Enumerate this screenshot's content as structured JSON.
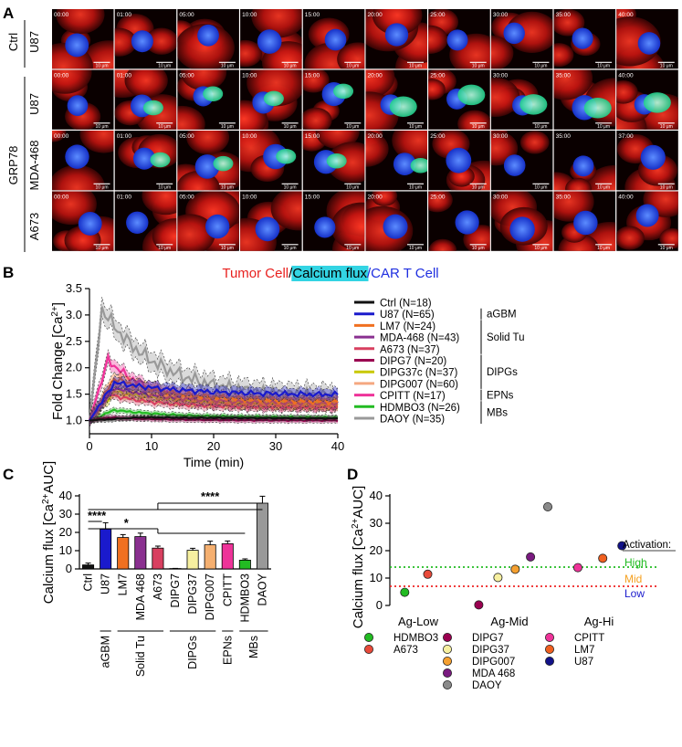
{
  "panel_letters": {
    "a": "A",
    "b": "B",
    "c": "C",
    "d": "D"
  },
  "panel_a": {
    "row_labels": [
      "U87",
      "U87",
      "MDA-468",
      "A673"
    ],
    "group_labels": {
      "ctrl": "Ctrl",
      "grp78": "GRP78"
    },
    "timestamps": [
      [
        "00:00",
        "01:00",
        "05:00",
        "10:00",
        "15:00",
        "20:00",
        "25:00",
        "30:00",
        "35:00",
        "40:00"
      ],
      [
        "00:00",
        "01:00",
        "05:00",
        "10:00",
        "15:00",
        "20:00",
        "25:00",
        "30:00",
        "35:00",
        "40:00"
      ],
      [
        "00:00",
        "01:00",
        "05:00",
        "10:00",
        "15:00",
        "20:00",
        "25:00",
        "30:00",
        "35:00",
        "37:00"
      ],
      [
        "00:00",
        "01:00",
        "05:00",
        "10:00",
        "15:00",
        "20:00",
        "25:00",
        "30:00",
        "35:00",
        "40:00"
      ]
    ],
    "scale_bar": "10 μm",
    "caption": {
      "tumor": "Tumor Cell",
      "slash1": "/",
      "calcium": "Calcium flux",
      "slash2": "/",
      "car": "CAR T Cell"
    },
    "colors": {
      "tumor": "#e8201e",
      "calcium": "#33d4e3",
      "car": "#1f2fe0",
      "nucleus": "#3b6bff",
      "flux": "#33e9a0"
    }
  },
  "chart_data": [
    {
      "panel": "B",
      "type": "line",
      "xlabel": "Time (min)",
      "ylabel_main": "Fold Change [Ca",
      "ylabel_sup": "2+",
      "ylabel_end": "]",
      "xlim": [
        0,
        40
      ],
      "ylim": [
        0.75,
        3.5
      ],
      "xticks": [
        0,
        10,
        20,
        30,
        40
      ],
      "yticks": [
        "1.0",
        "1.5",
        "2.0",
        "2.5",
        "3.0",
        "3.5"
      ],
      "ytick_values": [
        1.0,
        1.5,
        2.0,
        2.5,
        3.0,
        3.5
      ],
      "legend_groups": [
        "aGBM",
        "Solid Tu",
        "DIPGs",
        "EPNs",
        "MBs"
      ],
      "series": [
        {
          "name": "Ctrl (N=18)",
          "color": "#111111",
          "peak": 1.06,
          "peaktime": 8,
          "plateau": 1.02,
          "tau": 50,
          "band": 0.05
        },
        {
          "name": "U87 (N=65)",
          "color": "#1a1acc",
          "peak": 1.72,
          "peaktime": 4,
          "plateau": 1.48,
          "tau": 12,
          "band": 0.11
        },
        {
          "name": "LM7 (N=24)",
          "color": "#f07020",
          "peak": 1.8,
          "peaktime": 4,
          "plateau": 1.35,
          "tau": 10,
          "band": 0.12
        },
        {
          "name": "MDA-468 (N=43)",
          "color": "#8a3090",
          "peak": 1.62,
          "peaktime": 4,
          "plateau": 1.32,
          "tau": 10,
          "band": 0.1
        },
        {
          "name": "A673 (N=37)",
          "color": "#d84060",
          "peak": 1.5,
          "peaktime": 3,
          "plateau": 1.25,
          "tau": 8,
          "band": 0.08
        },
        {
          "name": "DIPG7 (N=20)",
          "color": "#9a0050",
          "peak": 1.06,
          "peaktime": 3,
          "plateau": 1.0,
          "tau": 10,
          "band": 0.05
        },
        {
          "name": "DIPG37c (N=37)",
          "color": "#c8c800",
          "peak": 1.55,
          "peaktime": 4,
          "plateau": 1.3,
          "tau": 10,
          "band": 0.1
        },
        {
          "name": "DIPG007 (N=60)",
          "color": "#f5a880",
          "peak": 1.6,
          "peaktime": 4,
          "plateau": 1.28,
          "tau": 10,
          "band": 0.1
        },
        {
          "name": "CPITT (N=17)",
          "color": "#ee3399",
          "peak": 2.15,
          "peaktime": 3,
          "plateau": 1.3,
          "tau": 7,
          "band": 0.12
        },
        {
          "name": "HDMBO3 (N=26)",
          "color": "#22bb22",
          "peak": 1.2,
          "peaktime": 4,
          "plateau": 1.05,
          "tau": 10,
          "band": 0.05
        },
        {
          "name": "DAOY (N=35)",
          "color": "#999999",
          "peak": 3.12,
          "peaktime": 2,
          "plateau": 1.45,
          "tau": 9,
          "band": 0.18
        }
      ]
    },
    {
      "panel": "C",
      "type": "bar",
      "ylabel_main": "Calcium flux [Ca",
      "ylabel_sup": "2+",
      "ylabel_end": "AUC]",
      "ylim": [
        0,
        40
      ],
      "yticks": [
        "0",
        "10",
        "20",
        "30",
        "40"
      ],
      "ytick_values": [
        0,
        10,
        20,
        30,
        40
      ],
      "categories": [
        "Ctrl",
        "U87",
        "LM7",
        "MDA 468",
        "A673",
        "DIPG7",
        "DIPG37",
        "DIPG007",
        "CPITT",
        "HDMBO3",
        "DAOY"
      ],
      "values": [
        2.2,
        21.8,
        17.2,
        17.7,
        11.4,
        0.2,
        10.2,
        13.2,
        13.8,
        4.8,
        36
      ],
      "errors": [
        1.0,
        3.5,
        1.6,
        1.9,
        1.1,
        0.1,
        1.1,
        2.0,
        1.5,
        0.7,
        3.8
      ],
      "colors": [
        "#111111",
        "#1a1acc",
        "#f07020",
        "#8a3090",
        "#d84060",
        "#9a0050",
        "#f7f0a0",
        "#f5b070",
        "#ee3399",
        "#22bb22",
        "#999999"
      ],
      "group_labels": [
        "aGBM",
        "Solid Tu",
        "DIPGs",
        "EPNs",
        "MBs"
      ],
      "significance": [
        "****",
        "*",
        "****"
      ]
    },
    {
      "panel": "D",
      "type": "scatter",
      "ylabel_main": "Calcium flux [Ca",
      "ylabel_sup": "2+",
      "ylabel_end": "AUC]",
      "ylim": [
        0,
        40
      ],
      "yticks": [
        "0",
        "10",
        "20",
        "30",
        "40"
      ],
      "ytick_values": [
        0,
        10,
        20,
        30,
        40
      ],
      "x_categories": [
        "Ag-Low",
        "Ag-Mid",
        "Ag-Hi"
      ],
      "thresholds": [
        {
          "value": 14,
          "color": "#22bb22"
        },
        {
          "value": 7,
          "color": "#ee2222"
        }
      ],
      "activation_title": "Activation:",
      "activation_levels": [
        {
          "label": "High",
          "color": "#22bb22"
        },
        {
          "label": "Mid",
          "color": "#f5a020"
        },
        {
          "label": "Low",
          "color": "#1a1acc"
        }
      ],
      "points": [
        {
          "name": "HDMBO3",
          "group": 0,
          "offset": -0.35,
          "y": 4.8,
          "color": "#22bb22"
        },
        {
          "name": "A673",
          "group": 0,
          "offset": 0.25,
          "y": 11.4,
          "color": "#e84a3a"
        },
        {
          "name": "DIPG7",
          "group": 1,
          "offset": -0.8,
          "y": 0.2,
          "color": "#9a0050"
        },
        {
          "name": "DIPG37",
          "group": 1,
          "offset": -0.3,
          "y": 10.2,
          "color": "#f7f0a0"
        },
        {
          "name": "DIPG007",
          "group": 1,
          "offset": 0.15,
          "y": 13.2,
          "color": "#f5a030"
        },
        {
          "name": "MDA 468",
          "group": 1,
          "offset": 0.55,
          "y": 17.7,
          "color": "#7a1a80"
        },
        {
          "name": "DAOY",
          "group": 1,
          "offset": 1.0,
          "y": 36,
          "color": "#8a8a8a"
        },
        {
          "name": "CPITT",
          "group": 2,
          "offset": -0.55,
          "y": 13.8,
          "color": "#ee3399"
        },
        {
          "name": "LM7",
          "group": 2,
          "offset": 0.1,
          "y": 17.2,
          "color": "#f06020"
        },
        {
          "name": "U87",
          "group": 2,
          "offset": 0.6,
          "y": 21.8,
          "color": "#111188"
        }
      ],
      "legend_columns": [
        [
          "HDMBO3",
          "A673"
        ],
        [
          "DIPG7",
          "DIPG37",
          "DIPG007",
          "MDA 468",
          "DAOY"
        ],
        [
          "CPITT",
          "LM7",
          "U87"
        ]
      ]
    }
  ]
}
